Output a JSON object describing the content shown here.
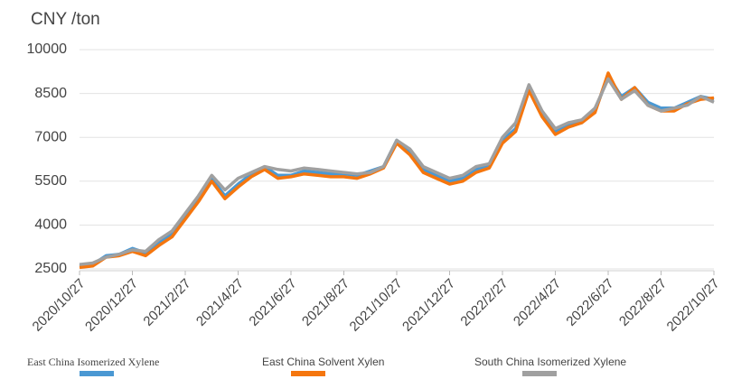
{
  "chart_data": {
    "type": "line",
    "y_unit_label": "CNY /ton",
    "categories": [
      "2020/10/27",
      null,
      null,
      null,
      "2020/12/27",
      null,
      null,
      null,
      "2021/2/27",
      null,
      null,
      null,
      "2021/4/27",
      null,
      null,
      null,
      "2021/6/27",
      null,
      null,
      null,
      "2021/8/27",
      null,
      null,
      null,
      "2021/10/27",
      null,
      null,
      null,
      "2021/12/27",
      null,
      null,
      null,
      "2022/2/27",
      null,
      null,
      null,
      "2022/4/27",
      null,
      null,
      null,
      "2022/6/27",
      null,
      null,
      null,
      "2022/8/27",
      null,
      null,
      null,
      "2022/10/27"
    ],
    "series": [
      {
        "name": "East China Isomerized Xylene",
        "color": "#4a98d3",
        "values": [
          2600,
          2650,
          2950,
          3000,
          3200,
          3050,
          3400,
          3700,
          4300,
          4900,
          5600,
          5000,
          5400,
          5750,
          6000,
          5700,
          5700,
          5850,
          5800,
          5750,
          5750,
          5700,
          5850,
          6000,
          6900,
          6500,
          5900,
          5700,
          5500,
          5600,
          5900,
          6000,
          6900,
          7300,
          8700,
          7800,
          7200,
          7400,
          7500,
          7900,
          9100,
          8400,
          8700,
          8200,
          8000,
          8000,
          8200,
          8400,
          8300
        ]
      },
      {
        "name": "East China Solvent Xylen",
        "color": "#f5760e",
        "values": [
          2550,
          2600,
          2900,
          2950,
          3100,
          2950,
          3300,
          3600,
          4200,
          4800,
          5500,
          4900,
          5300,
          5650,
          5900,
          5600,
          5650,
          5750,
          5700,
          5650,
          5650,
          5600,
          5750,
          5950,
          6800,
          6400,
          5800,
          5600,
          5400,
          5500,
          5800,
          5950,
          6800,
          7200,
          8600,
          7700,
          7100,
          7350,
          7500,
          7850,
          9200,
          8300,
          8700,
          8100,
          7900,
          7900,
          8150,
          8300,
          8350
        ]
      },
      {
        "name": "South China Isomerized Xylene",
        "color": "#a0a0a0",
        "values": [
          2650,
          2700,
          2900,
          3000,
          3150,
          3100,
          3500,
          3800,
          4400,
          5000,
          5700,
          5200,
          5600,
          5800,
          6000,
          5900,
          5850,
          5950,
          5900,
          5850,
          5800,
          5750,
          5800,
          6000,
          6900,
          6600,
          6000,
          5800,
          5600,
          5700,
          6000,
          6100,
          7000,
          7500,
          8800,
          7900,
          7300,
          7500,
          7600,
          8000,
          9000,
          8300,
          8600,
          8100,
          7900,
          8000,
          8100,
          8400,
          8200
        ]
      }
    ],
    "ylim": [
      2500,
      10000
    ],
    "yticks": [
      2500,
      4000,
      5500,
      7000,
      8500,
      10000
    ],
    "grid": true
  }
}
